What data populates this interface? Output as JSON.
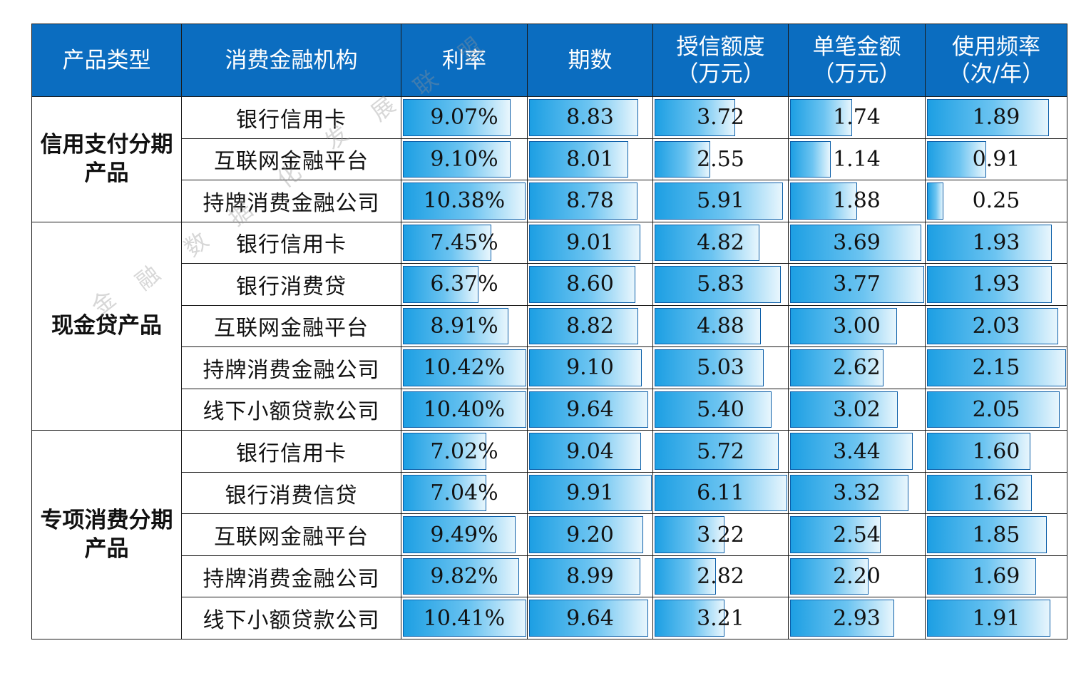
{
  "headers": [
    "产品类型",
    "消费金融机构",
    "利率",
    "期数",
    "授信额度\n（万元）",
    "单笔金额\n（万元）",
    "使用频率\n（次/年）"
  ],
  "groups": [
    {
      "category": "信用支付分期\n产品",
      "rows": [
        {
          "institution": "银行信用卡",
          "rate": "9.07%",
          "periods": "8.83",
          "credit": "3.72",
          "amount": "1.74",
          "freq": "1.89"
        },
        {
          "institution": "互联网金融平台",
          "rate": "9.10%",
          "periods": "8.01",
          "credit": "2.55",
          "amount": "1.14",
          "freq": "0.91"
        },
        {
          "institution": "持牌消费金融公司",
          "rate": "10.38%",
          "periods": "8.78",
          "credit": "5.91",
          "amount": "1.88",
          "freq": "0.25"
        }
      ]
    },
    {
      "category": "现金贷产品",
      "rows": [
        {
          "institution": "银行信用卡",
          "rate": "7.45%",
          "periods": "9.01",
          "credit": "4.82",
          "amount": "3.69",
          "freq": "1.93"
        },
        {
          "institution": "银行消费贷",
          "rate": "6.37%",
          "periods": "8.60",
          "credit": "5.83",
          "amount": "3.77",
          "freq": "1.93"
        },
        {
          "institution": "互联网金融平台",
          "rate": "8.91%",
          "periods": "8.82",
          "credit": "4.88",
          "amount": "3.00",
          "freq": "2.03"
        },
        {
          "institution": "持牌消费金融公司",
          "rate": "10.42%",
          "periods": "9.10",
          "credit": "5.03",
          "amount": "2.62",
          "freq": "2.15"
        },
        {
          "institution": "线下小额贷款公司",
          "rate": "10.40%",
          "periods": "9.64",
          "credit": "5.40",
          "amount": "3.02",
          "freq": "2.05"
        }
      ]
    },
    {
      "category": "专项消费分期\n产品",
      "rows": [
        {
          "institution": "银行信用卡",
          "rate": "7.02%",
          "periods": "9.04",
          "credit": "5.72",
          "amount": "3.44",
          "freq": "1.60"
        },
        {
          "institution": "银行消费信贷",
          "rate": "7.04%",
          "periods": "9.91",
          "credit": "6.11",
          "amount": "3.32",
          "freq": "1.62"
        },
        {
          "institution": "互联网金融平台",
          "rate": "9.49%",
          "periods": "9.20",
          "credit": "3.22",
          "amount": "2.54",
          "freq": "1.85"
        },
        {
          "institution": "持牌消费金融公司",
          "rate": "9.82%",
          "periods": "8.99",
          "credit": "2.82",
          "amount": "2.20",
          "freq": "1.69"
        },
        {
          "institution": "线下小额贷款公司",
          "rate": "10.41%",
          "periods": "9.64",
          "credit": "3.21",
          "amount": "2.93",
          "freq": "1.91"
        }
      ]
    }
  ],
  "watermark": [
    "金",
    "融",
    "数",
    "据",
    "化",
    "发",
    "展",
    "联",
    "盟"
  ]
}
